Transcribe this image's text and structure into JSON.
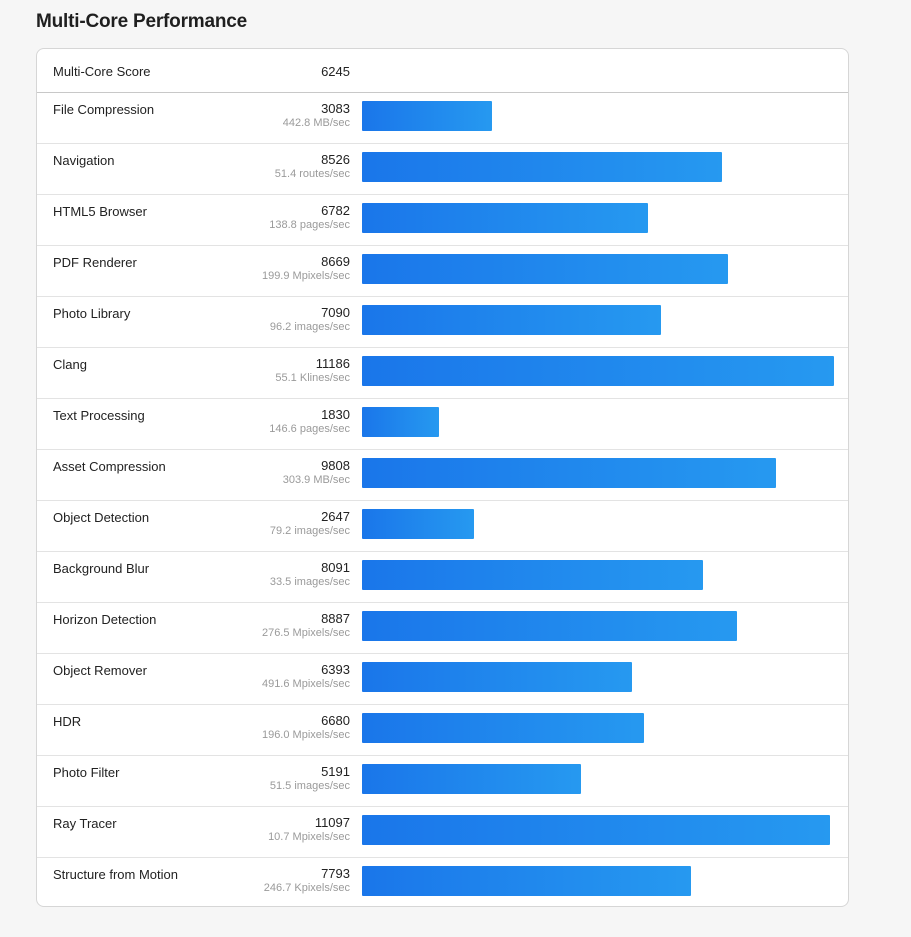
{
  "section_title": "Multi-Core Performance",
  "overall": {
    "label": "Multi-Core Score",
    "score": "6245"
  },
  "max_score": 11186,
  "benchmarks": [
    {
      "name": "File Compression",
      "score": 3083,
      "rate": "442.8 MB/sec"
    },
    {
      "name": "Navigation",
      "score": 8526,
      "rate": "51.4 routes/sec"
    },
    {
      "name": "HTML5 Browser",
      "score": 6782,
      "rate": "138.8 pages/sec"
    },
    {
      "name": "PDF Renderer",
      "score": 8669,
      "rate": "199.9 Mpixels/sec"
    },
    {
      "name": "Photo Library",
      "score": 7090,
      "rate": "96.2 images/sec"
    },
    {
      "name": "Clang",
      "score": 11186,
      "rate": "55.1 Klines/sec"
    },
    {
      "name": "Text Processing",
      "score": 1830,
      "rate": "146.6 pages/sec"
    },
    {
      "name": "Asset Compression",
      "score": 9808,
      "rate": "303.9 MB/sec"
    },
    {
      "name": "Object Detection",
      "score": 2647,
      "rate": "79.2 images/sec"
    },
    {
      "name": "Background Blur",
      "score": 8091,
      "rate": "33.5 images/sec"
    },
    {
      "name": "Horizon Detection",
      "score": 8887,
      "rate": "276.5 Mpixels/sec"
    },
    {
      "name": "Object Remover",
      "score": 6393,
      "rate": "491.6 Mpixels/sec"
    },
    {
      "name": "HDR",
      "score": 6680,
      "rate": "196.0 Mpixels/sec"
    },
    {
      "name": "Photo Filter",
      "score": 5191,
      "rate": "51.5 images/sec"
    },
    {
      "name": "Ray Tracer",
      "score": 11097,
      "rate": "10.7 Mpixels/sec"
    },
    {
      "name": "Structure from Motion",
      "score": 7793,
      "rate": "246.7 Kpixels/sec"
    }
  ],
  "colors": {
    "bar_start": "#1a76ea",
    "bar_end": "#2699f0"
  }
}
